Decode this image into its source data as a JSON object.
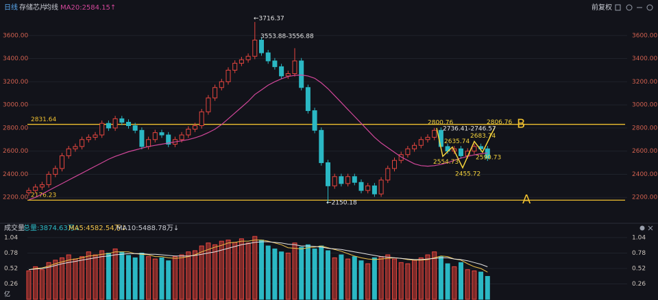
{
  "chart_data": {
    "type": "candlestick",
    "tabs": [
      "日线",
      "存储芯片",
      "均线"
    ],
    "indicator": "MA20:2584.15↑",
    "adjust": "前复权",
    "open": [
      2240,
      2260,
      2290,
      2310,
      2400,
      2450,
      2560,
      2620,
      2640,
      2700,
      2720,
      2740,
      2840,
      2800,
      2880,
      2850,
      2820,
      2780,
      2640,
      2700,
      2760,
      2740,
      2660,
      2700,
      2740,
      2790,
      2820,
      2940,
      3060,
      3150,
      3200,
      3300,
      3360,
      3390,
      3420,
      3560,
      3450,
      3380,
      3330,
      3250,
      3270,
      3380,
      3150,
      2950,
      2780,
      2500,
      2300,
      2380,
      2320,
      2380,
      2330,
      2260,
      2300,
      2230,
      2350,
      2450,
      2520,
      2570,
      2620,
      2650,
      2700,
      2720,
      2780,
      2640,
      2600,
      2620,
      2560,
      2600,
      2640,
      2620
    ],
    "high": [
      2285,
      2315,
      2335,
      2425,
      2475,
      2585,
      2645,
      2665,
      2725,
      2745,
      2765,
      2865,
      2865,
      2905,
      2905,
      2875,
      2845,
      2805,
      2725,
      2785,
      2785,
      2765,
      2725,
      2765,
      2815,
      2845,
      2965,
      3085,
      3175,
      3225,
      3325,
      3385,
      3415,
      3445,
      3716.37,
      3585,
      3475,
      3405,
      3355,
      3295,
      3490,
      3405,
      3175,
      2975,
      2805,
      2525,
      2405,
      2405,
      2405,
      2405,
      2355,
      2325,
      2325,
      2375,
      2475,
      2545,
      2595,
      2645,
      2675,
      2725,
      2745,
      2800.76,
      2805,
      2665,
      2645,
      2645,
      2625,
      2665,
      2665,
      2645
    ],
    "low": [
      2215,
      2235,
      2265,
      2285,
      2375,
      2425,
      2535,
      2595,
      2615,
      2675,
      2695,
      2715,
      2775,
      2775,
      2825,
      2795,
      2755,
      2615,
      2615,
      2675,
      2715,
      2635,
      2635,
      2675,
      2715,
      2765,
      2795,
      2915,
      3035,
      3125,
      3175,
      3275,
      3335,
      3365,
      3395,
      3425,
      3355,
      3305,
      3225,
      3225,
      3245,
      3125,
      2925,
      2755,
      2475,
      2150.18,
      2275,
      2295,
      2295,
      2305,
      2235,
      2235,
      2205,
      2205,
      2325,
      2425,
      2495,
      2545,
      2595,
      2625,
      2675,
      2695,
      2615,
      2575,
      2575,
      2535,
      2535,
      2575,
      2595,
      2515
    ],
    "close": [
      2260,
      2290,
      2310,
      2400,
      2450,
      2560,
      2620,
      2640,
      2700,
      2720,
      2740,
      2840,
      2800,
      2880,
      2850,
      2820,
      2780,
      2640,
      2700,
      2760,
      2740,
      2660,
      2700,
      2740,
      2790,
      2820,
      2940,
      3060,
      3150,
      3200,
      3300,
      3360,
      3390,
      3420,
      3560,
      3450,
      3380,
      3330,
      3250,
      3270,
      3380,
      3150,
      2950,
      2780,
      2500,
      2300,
      2380,
      2320,
      2380,
      2330,
      2260,
      2300,
      2230,
      2350,
      2450,
      2520,
      2570,
      2620,
      2650,
      2700,
      2720,
      2780,
      2640,
      2600,
      2620,
      2560,
      2600,
      2640,
      2620,
      2540
    ],
    "up_color": "#e8463f",
    "down_color": "#2bb8c4",
    "ma20": {
      "color": "#d2479a",
      "values": [
        2180,
        2200,
        2230,
        2260,
        2290,
        2320,
        2350,
        2380,
        2410,
        2440,
        2470,
        2500,
        2530,
        2555,
        2575,
        2595,
        2610,
        2625,
        2640,
        2650,
        2660,
        2670,
        2680,
        2690,
        2700,
        2715,
        2735,
        2760,
        2790,
        2830,
        2880,
        2930,
        2980,
        3030,
        3090,
        3130,
        3170,
        3200,
        3225,
        3245,
        3255,
        3258,
        3250,
        3230,
        3190,
        3140,
        3080,
        3020,
        2960,
        2900,
        2840,
        2780,
        2720,
        2670,
        2630,
        2590,
        2550,
        2520,
        2490,
        2475,
        2470,
        2475,
        2485,
        2500,
        2520,
        2540,
        2555,
        2568,
        2578,
        2584.15
      ]
    },
    "ylim": [
      2000,
      3800
    ],
    "yticks": [
      {
        "value": 2200,
        "label": "2200.00"
      },
      {
        "value": 2400,
        "label": "2400.00"
      },
      {
        "value": 2600,
        "label": "2600.00"
      },
      {
        "value": 2800,
        "label": "2800.00"
      },
      {
        "value": 3000,
        "label": "3000.00"
      },
      {
        "value": 3200,
        "label": "3200.00"
      },
      {
        "value": 3400,
        "label": "3400.00"
      },
      {
        "value": 3600,
        "label": "3600.00"
      }
    ],
    "levels": [
      {
        "name": "B",
        "value": 2831.64,
        "color": "#f2c230"
      },
      {
        "name": "A",
        "value": 2176.23,
        "color": "#f2c230"
      }
    ],
    "wave": {
      "color": "#f5d33c",
      "values": [
        2800.76,
        2554.73,
        2635.74,
        2455.72,
        2683.74,
        2590.73,
        2806.76
      ]
    },
    "annotations": [
      "←3716.37",
      "3553.88-3556.88",
      "←2150.18",
      "2736.41-2746.57"
    ],
    "volume": {
      "title": "成交量",
      "total": "总量:3874.63万↓",
      "ma5_label": "MA5:4582.54万↓",
      "ma10_label": "MA10:5488.78万↓",
      "unit": "亿",
      "values": [
        0.48,
        0.55,
        0.5,
        0.62,
        0.66,
        0.7,
        0.75,
        0.68,
        0.72,
        0.8,
        0.75,
        0.82,
        0.78,
        0.85,
        0.8,
        0.74,
        0.7,
        0.78,
        0.72,
        0.68,
        0.7,
        0.65,
        0.72,
        0.75,
        0.8,
        0.82,
        0.9,
        0.95,
        0.92,
        0.98,
        1.0,
        0.96,
        1.02,
        0.95,
        1.06,
        1.0,
        0.9,
        0.85,
        0.8,
        0.78,
        0.95,
        0.88,
        0.92,
        0.85,
        0.9,
        0.82,
        0.7,
        0.75,
        0.68,
        0.72,
        0.65,
        0.6,
        0.7,
        0.72,
        0.75,
        0.68,
        0.62,
        0.6,
        0.66,
        0.7,
        0.75,
        0.8,
        0.72,
        0.6,
        0.55,
        0.62,
        0.5,
        0.48,
        0.46,
        0.387
      ],
      "ma5": [
        0.5,
        0.52,
        0.53,
        0.56,
        0.6,
        0.63,
        0.66,
        0.68,
        0.7,
        0.73,
        0.74,
        0.76,
        0.77,
        0.8,
        0.8,
        0.8,
        0.77,
        0.76,
        0.75,
        0.72,
        0.72,
        0.7,
        0.69,
        0.7,
        0.72,
        0.75,
        0.8,
        0.84,
        0.88,
        0.91,
        0.95,
        0.96,
        0.98,
        0.98,
        1.0,
        1.0,
        0.98,
        0.95,
        0.92,
        0.87,
        0.86,
        0.85,
        0.87,
        0.88,
        0.9,
        0.87,
        0.84,
        0.81,
        0.77,
        0.73,
        0.7,
        0.68,
        0.67,
        0.68,
        0.69,
        0.7,
        0.69,
        0.67,
        0.66,
        0.66,
        0.67,
        0.7,
        0.73,
        0.72,
        0.68,
        0.66,
        0.6,
        0.55,
        0.52,
        0.458
      ],
      "ma10": [
        0.5,
        0.51,
        0.52,
        0.54,
        0.57,
        0.6,
        0.62,
        0.64,
        0.66,
        0.68,
        0.7,
        0.72,
        0.73,
        0.75,
        0.76,
        0.77,
        0.77,
        0.77,
        0.76,
        0.76,
        0.75,
        0.74,
        0.73,
        0.73,
        0.73,
        0.74,
        0.76,
        0.78,
        0.8,
        0.83,
        0.86,
        0.89,
        0.92,
        0.94,
        0.96,
        0.97,
        0.97,
        0.96,
        0.95,
        0.93,
        0.92,
        0.9,
        0.9,
        0.89,
        0.88,
        0.86,
        0.85,
        0.84,
        0.82,
        0.8,
        0.78,
        0.76,
        0.74,
        0.72,
        0.71,
        0.7,
        0.69,
        0.68,
        0.67,
        0.67,
        0.68,
        0.69,
        0.7,
        0.7,
        0.68,
        0.67,
        0.65,
        0.62,
        0.59,
        0.549
      ],
      "ma5_color": "#f0c34a",
      "ma10_color": "#e8e8e8",
      "ylim": [
        0,
        1.12
      ],
      "yticks": [
        0.26,
        0.52,
        0.78,
        1.04
      ]
    }
  }
}
